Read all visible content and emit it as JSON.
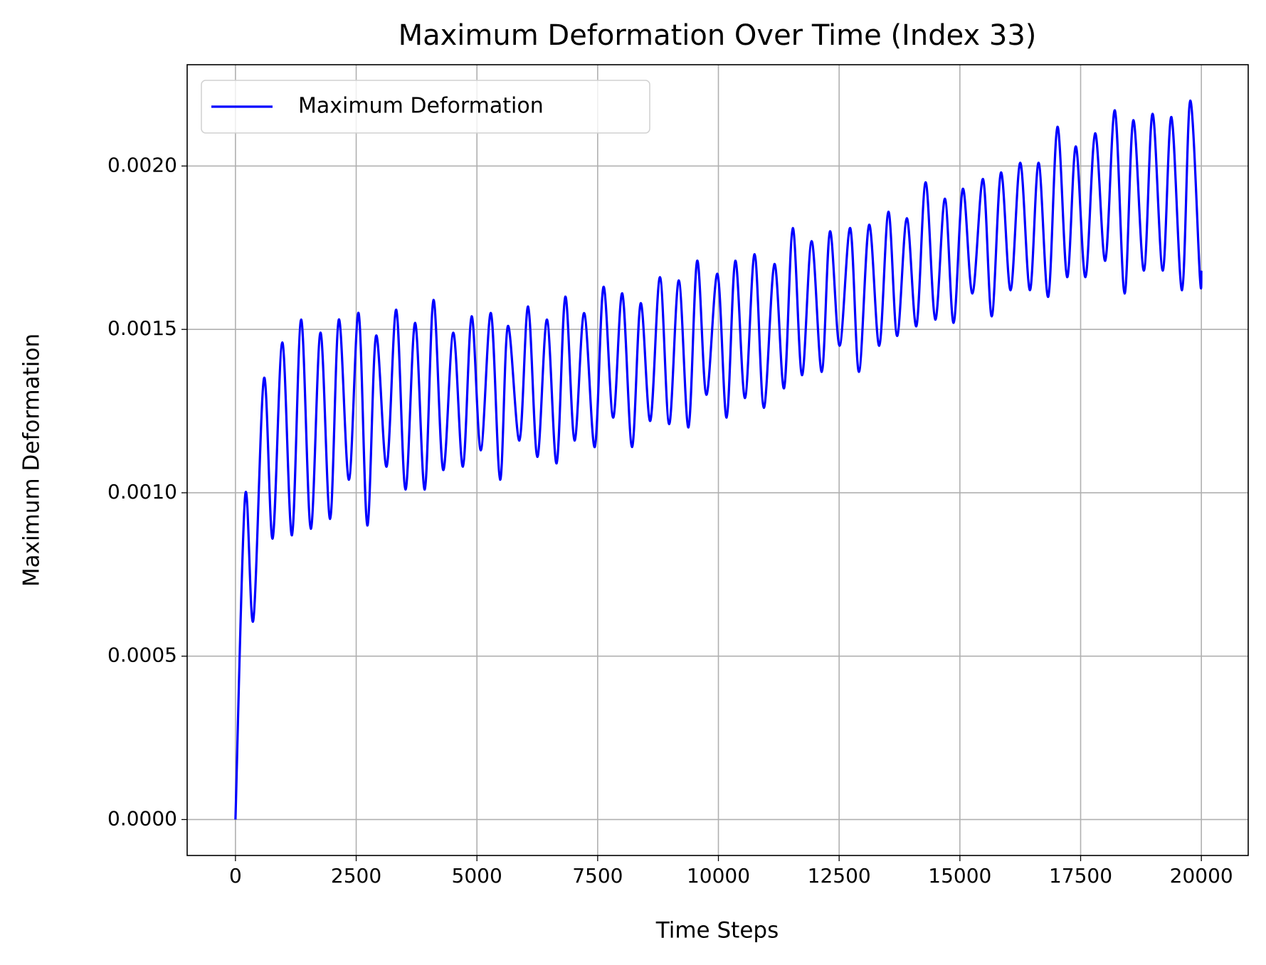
{
  "chart_data": {
    "type": "line",
    "title": "Maximum Deformation Over Time (Index 33)",
    "x_label": "Time Steps",
    "y_label": "Maximum Deformation",
    "x": [
      0,
      200,
      370,
      590,
      770,
      970,
      1170,
      1360,
      1560,
      1760,
      1960,
      2140,
      2350,
      2550,
      2730,
      2910,
      3130,
      3330,
      3520,
      3720,
      3920,
      4100,
      4300,
      4510,
      4710,
      4890,
      5080,
      5290,
      5480,
      5640,
      5880,
      6060,
      6250,
      6450,
      6650,
      6830,
      7020,
      7220,
      7440,
      7620,
      7820,
      8010,
      8210,
      8390,
      8590,
      8790,
      8980,
      9180,
      9380,
      9560,
      9750,
      9980,
      10170,
      10350,
      10550,
      10750,
      10940,
      11160,
      11360,
      11540,
      11730,
      11930,
      12140,
      12310,
      12510,
      12730,
      12910,
      13120,
      13330,
      13520,
      13700,
      13900,
      14100,
      14290,
      14490,
      14690,
      14870,
      15060,
      15260,
      15480,
      15660,
      15850,
      16050,
      16250,
      16450,
      16630,
      16830,
      17020,
      17220,
      17400,
      17600,
      17800,
      18010,
      18210,
      18410,
      18590,
      18810,
      18990,
      19200,
      19380,
      19600,
      19770,
      19970,
      20000
    ],
    "series": [
      {
        "name": "Maximum Deformation",
        "color": "#0000ff",
        "values": [
          0,
          0.00099,
          0.00061,
          0.00135,
          0.00086,
          0.00146,
          0.00087,
          0.00153,
          0.00089,
          0.00149,
          0.00092,
          0.00153,
          0.00104,
          0.00155,
          0.0009,
          0.00148,
          0.00108,
          0.00156,
          0.00101,
          0.00152,
          0.00101,
          0.00159,
          0.00107,
          0.00149,
          0.00108,
          0.00154,
          0.00113,
          0.00155,
          0.00104,
          0.00151,
          0.00116,
          0.00157,
          0.00111,
          0.00153,
          0.00109,
          0.0016,
          0.00116,
          0.00155,
          0.00114,
          0.00163,
          0.00123,
          0.00161,
          0.00114,
          0.00158,
          0.00122,
          0.00166,
          0.00121,
          0.00165,
          0.0012,
          0.00171,
          0.0013,
          0.00167,
          0.00123,
          0.00171,
          0.00129,
          0.00173,
          0.00126,
          0.0017,
          0.00132,
          0.00181,
          0.00136,
          0.00177,
          0.00137,
          0.0018,
          0.00145,
          0.00181,
          0.00137,
          0.00182,
          0.00145,
          0.00186,
          0.00148,
          0.00184,
          0.00151,
          0.00195,
          0.00153,
          0.0019,
          0.00152,
          0.00193,
          0.00161,
          0.00196,
          0.00154,
          0.00198,
          0.00162,
          0.00201,
          0.00162,
          0.00201,
          0.0016,
          0.00212,
          0.00166,
          0.00206,
          0.00166,
          0.0021,
          0.00171,
          0.00217,
          0.00161,
          0.00214,
          0.00168,
          0.00216,
          0.00168,
          0.00215,
          0.00162,
          0.0022,
          0.00166,
          0.00168
        ]
      }
    ],
    "xlim": [
      -1000,
      20970
    ],
    "ylim": [
      -0.00011,
      0.00231
    ],
    "xticks": [
      0,
      2500,
      5000,
      7500,
      10000,
      12500,
      15000,
      17500,
      20000
    ],
    "yticks": [
      {
        "value": 0,
        "label": "0.0000"
      },
      {
        "value": 0.0005,
        "label": "0.0005"
      },
      {
        "value": 0.001,
        "label": "0.0010"
      },
      {
        "value": 0.0015,
        "label": "0.0015"
      },
      {
        "value": 0.002,
        "label": "0.0020"
      }
    ],
    "grid": true,
    "legend": "upper left"
  }
}
